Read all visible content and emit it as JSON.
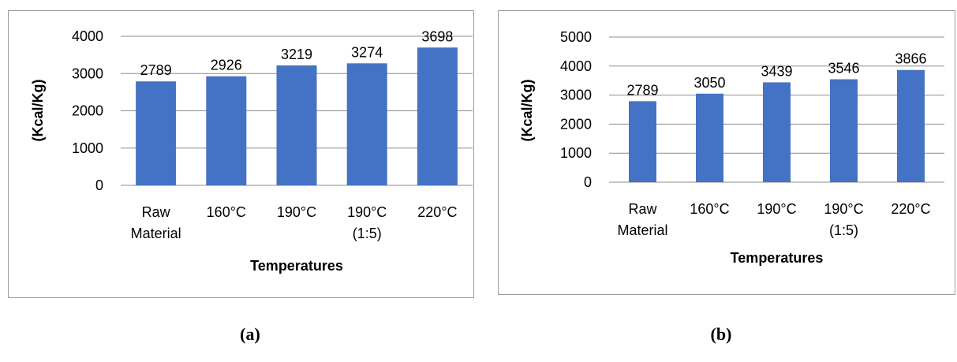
{
  "chart_data": [
    {
      "type": "bar",
      "categories": [
        [
          "Raw",
          "Material"
        ],
        [
          "160°C"
        ],
        [
          "190°C"
        ],
        [
          "190°C",
          "(1:5)"
        ],
        [
          "220°C"
        ]
      ],
      "values": [
        2789,
        2926,
        3219,
        3274,
        3698
      ],
      "xlabel": "Temperatures",
      "ylabel": "(Kcal/Kg)",
      "ylim": [
        0,
        4000
      ],
      "yticks": [
        0,
        1000,
        2000,
        3000,
        4000
      ],
      "grid": true,
      "bar_color": "#4472C4",
      "grid_color": "#8c8c8c"
    },
    {
      "type": "bar",
      "categories": [
        [
          "Raw",
          "Material"
        ],
        [
          "160°C"
        ],
        [
          "190°C"
        ],
        [
          "190°C",
          "(1:5)"
        ],
        [
          "220°C"
        ]
      ],
      "values": [
        2789,
        3050,
        3439,
        3546,
        3866
      ],
      "xlabel": "Temperatures",
      "ylabel": "(Kcal/Kg)",
      "ylim": [
        0,
        5000
      ],
      "yticks": [
        0,
        1000,
        2000,
        3000,
        4000,
        5000
      ],
      "grid": true,
      "bar_color": "#4472C4",
      "grid_color": "#8c8c8c"
    }
  ],
  "captions": [
    "(a)",
    "(b)"
  ]
}
